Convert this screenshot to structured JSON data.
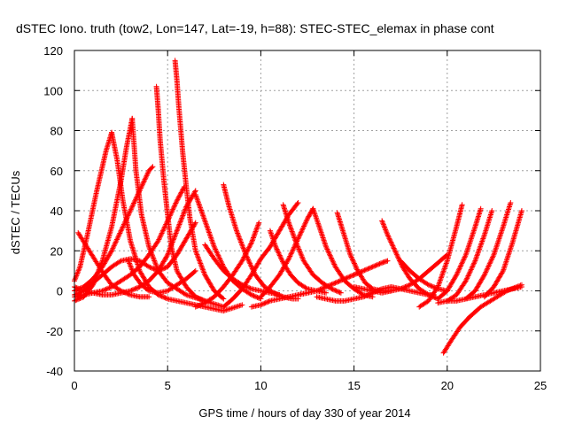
{
  "chart_data": {
    "type": "scatter",
    "title": "dSTEC Iono. truth (tow2, Lon=147, Lat=-19, h=88): STEC-STEC_elemax in phase cont",
    "xlabel": "GPS time / hours of day 330 of year 2014",
    "ylabel": "dSTEC  / TECUs",
    "xlim": [
      0,
      25
    ],
    "ylim": [
      -40,
      120
    ],
    "xticks": [
      "0",
      "5",
      "10",
      "15",
      "20",
      "25"
    ],
    "yticks": [
      "-40",
      "-20",
      "0",
      "20",
      "40",
      "60",
      "80",
      "100",
      "120"
    ],
    "grid": true,
    "marker": "+",
    "color": "#ff0000",
    "series": [
      {
        "x": [
          0.0,
          0.3,
          0.7,
          1.2,
          1.7,
          2.0
        ],
        "y": [
          5,
          12,
          28,
          50,
          70,
          79
        ]
      },
      {
        "x": [
          2.0,
          2.3,
          2.6,
          3.0,
          3.5,
          4.0,
          4.5,
          5.0,
          5.5,
          6.0,
          7.0,
          8.0,
          9.0
        ],
        "y": [
          79,
          65,
          45,
          25,
          10,
          2,
          -2,
          -4,
          -5,
          -6,
          -8,
          -10,
          -7
        ]
      },
      {
        "x": [
          0.0,
          0.5,
          1.0,
          1.5,
          2.0,
          2.5,
          2.8,
          3.1
        ],
        "y": [
          -5,
          -3,
          3,
          15,
          32,
          55,
          72,
          86
        ]
      },
      {
        "x": [
          3.1,
          3.3,
          3.6,
          4.0,
          4.5,
          5.0,
          5.5,
          6.0,
          7.0,
          8.0
        ],
        "y": [
          86,
          60,
          38,
          22,
          10,
          4,
          1,
          -2,
          -5,
          -8
        ]
      },
      {
        "x": [
          0.0,
          0.5,
          1.0,
          1.5,
          2.0,
          2.5,
          3.0,
          3.5,
          4.0,
          4.2
        ],
        "y": [
          0,
          2,
          6,
          12,
          20,
          30,
          40,
          50,
          60,
          62
        ]
      },
      {
        "x": [
          4.4,
          4.5,
          4.6,
          4.8,
          5.0,
          5.2,
          5.5,
          6.0,
          6.5,
          7.0
        ],
        "y": [
          102,
          90,
          75,
          55,
          38,
          22,
          10,
          2,
          -3,
          -5
        ]
      },
      {
        "x": [
          5.4,
          5.5,
          5.6,
          5.8,
          6.0,
          6.2,
          6.5,
          7.0,
          7.5,
          8.0
        ],
        "y": [
          115,
          105,
          92,
          70,
          52,
          36,
          20,
          8,
          0,
          -4
        ]
      },
      {
        "x": [
          0.0,
          0.5,
          1.0,
          1.5,
          2.0,
          2.5,
          3.0,
          3.5,
          4.0,
          4.5,
          5.0,
          5.5,
          6.0,
          6.5
        ],
        "y": [
          2,
          0,
          -1,
          -2,
          -2,
          -1,
          0,
          2,
          5,
          10,
          18,
          30,
          42,
          50
        ]
      },
      {
        "x": [
          0.0,
          0.5,
          1.0,
          1.5,
          2.0,
          2.5,
          3.0,
          3.5,
          4.0,
          4.5,
          5.0,
          5.5,
          5.9
        ],
        "y": [
          -3,
          -2,
          -1,
          0,
          2,
          5,
          8,
          12,
          18,
          25,
          35,
          45,
          52
        ]
      },
      {
        "x": [
          0.2,
          0.4,
          0.8,
          1.2,
          1.6,
          2.0,
          2.5,
          3.0,
          3.5,
          4.0
        ],
        "y": [
          29,
          26,
          20,
          14,
          8,
          3,
          0,
          -2,
          -3,
          -3
        ]
      },
      {
        "x": [
          2.9,
          3.2,
          3.6,
          4.0,
          4.5,
          5.0,
          5.5,
          6.0,
          6.5
        ],
        "y": [
          15,
          8,
          3,
          0,
          -1,
          0,
          3,
          6,
          10
        ]
      },
      {
        "x": [
          0.0,
          0.5,
          1.0,
          1.5,
          2.0,
          2.5,
          3.0,
          3.5,
          4.0,
          4.5,
          5.0,
          5.5,
          6.0,
          6.5
        ],
        "y": [
          -2,
          0,
          4,
          8,
          12,
          15,
          16,
          15,
          12,
          10,
          12,
          18,
          26,
          34
        ]
      },
      {
        "x": [
          6.5,
          7.0,
          7.5,
          8.0,
          8.5,
          9.0,
          9.5,
          10.0
        ],
        "y": [
          48,
          35,
          22,
          12,
          5,
          1,
          -2,
          -4
        ]
      },
      {
        "x": [
          7.0,
          7.5,
          8.0,
          8.5,
          9.0,
          9.5,
          10.0,
          10.5,
          11.0
        ],
        "y": [
          23,
          16,
          10,
          6,
          3,
          1,
          0,
          -1,
          -2
        ]
      },
      {
        "x": [
          8.0,
          8.3,
          8.7,
          9.2,
          9.7,
          10.2,
          10.7,
          11.2,
          11.7,
          12.0
        ],
        "y": [
          53,
          42,
          30,
          18,
          8,
          2,
          -1,
          -3,
          -4,
          -4
        ]
      },
      {
        "x": [
          8.0,
          8.5,
          9.0,
          9.5,
          10.0,
          10.5,
          11.0,
          11.5,
          12.0
        ],
        "y": [
          -8,
          -4,
          1,
          8,
          16,
          22,
          30,
          38,
          44
        ]
      },
      {
        "x": [
          6.5,
          7.0,
          7.5,
          8.0,
          8.5,
          9.0,
          9.5,
          9.9
        ],
        "y": [
          -8,
          -6,
          -3,
          2,
          8,
          15,
          24,
          34
        ]
      },
      {
        "x": [
          9.5,
          10.0,
          10.5,
          11.0,
          11.5,
          12.0,
          12.5,
          13.0
        ],
        "y": [
          -8,
          -7,
          -5,
          -4,
          -3,
          -2,
          -1,
          0
        ]
      },
      {
        "x": [
          10.5,
          10.8,
          11.2,
          11.6,
          12.0,
          12.5,
          13.0,
          13.5
        ],
        "y": [
          30,
          22,
          14,
          8,
          4,
          1,
          0,
          -1
        ]
      },
      {
        "x": [
          11.2,
          11.5,
          11.9,
          12.3,
          12.8,
          13.3,
          13.8,
          14.3
        ],
        "y": [
          43,
          34,
          24,
          15,
          8,
          4,
          1,
          -1
        ]
      },
      {
        "x": [
          10.0,
          10.5,
          11.0,
          11.5,
          12.0,
          12.5,
          12.8
        ],
        "y": [
          -3,
          2,
          8,
          16,
          26,
          36,
          41
        ]
      },
      {
        "x": [
          12.8,
          13.1,
          13.5,
          14.0,
          14.5,
          15.0,
          15.5,
          16.0
        ],
        "y": [
          41,
          33,
          22,
          12,
          5,
          1,
          -2,
          -3
        ]
      },
      {
        "x": [
          14.1,
          14.4,
          14.8,
          15.2,
          15.6,
          16.0,
          16.5,
          17.0
        ],
        "y": [
          39,
          30,
          18,
          10,
          4,
          1,
          0,
          0
        ]
      },
      {
        "x": [
          12.0,
          12.5,
          13.0,
          13.5,
          14.0,
          14.5,
          15.0,
          15.5,
          16.0,
          16.5,
          16.8
        ],
        "y": [
          -2,
          -1,
          0,
          2,
          4,
          6,
          8,
          10,
          12,
          14,
          15
        ]
      },
      {
        "x": [
          13.0,
          13.5,
          14.0,
          14.5,
          15.0,
          15.5,
          16.0,
          16.5,
          17.0,
          17.5,
          18.0,
          18.5,
          19.0,
          19.3
        ],
        "y": [
          -3,
          -4,
          -5,
          -5,
          -4,
          -3,
          -1,
          1,
          2,
          1,
          0,
          -1,
          -2,
          -2
        ]
      },
      {
        "x": [
          16.5,
          16.8,
          17.2,
          17.6,
          18.0,
          18.5,
          19.0,
          19.5
        ],
        "y": [
          35,
          28,
          20,
          12,
          6,
          1,
          -2,
          -4
        ]
      },
      {
        "x": [
          17.5,
          18.0,
          18.5,
          19.0,
          19.5,
          20.0
        ],
        "y": [
          15,
          10,
          6,
          3,
          1,
          0
        ]
      },
      {
        "x": [
          15.0,
          15.5,
          16.0,
          16.5,
          17.0,
          17.5,
          18.0,
          18.5,
          19.0,
          19.5,
          20.0
        ],
        "y": [
          2,
          1,
          0,
          -1,
          0,
          1,
          3,
          6,
          10,
          14,
          18
        ]
      },
      {
        "x": [
          18.5,
          19.0,
          19.5,
          20.0,
          20.5,
          20.8
        ],
        "y": [
          -8,
          -5,
          2,
          15,
          32,
          43
        ]
      },
      {
        "x": [
          19.5,
          20.0,
          20.5,
          21.0,
          21.5,
          21.8
        ],
        "y": [
          -4,
          0,
          8,
          18,
          32,
          41
        ]
      },
      {
        "x": [
          20.0,
          20.5,
          21.0,
          21.5,
          22.0,
          22.4
        ],
        "y": [
          -5,
          -2,
          5,
          15,
          28,
          40
        ]
      },
      {
        "x": [
          21.0,
          21.5,
          22.0,
          22.5,
          23.0,
          23.4
        ],
        "y": [
          -4,
          0,
          8,
          18,
          32,
          44
        ]
      },
      {
        "x": [
          22.0,
          22.5,
          23.0,
          23.5,
          24.0
        ],
        "y": [
          -3,
          2,
          10,
          24,
          40
        ]
      },
      {
        "x": [
          19.8,
          20.2,
          20.7,
          21.2,
          21.8,
          22.5,
          23.2,
          24.0
        ],
        "y": [
          -31,
          -25,
          -18,
          -13,
          -8,
          -4,
          0,
          3
        ]
      },
      {
        "x": [
          19.5,
          20.0,
          20.5,
          21.0,
          21.5,
          22.0,
          22.5,
          23.0,
          23.5,
          24.0
        ],
        "y": [
          -6,
          -5,
          -5,
          -4,
          -3,
          -2,
          -1,
          0,
          1,
          2
        ]
      }
    ]
  }
}
